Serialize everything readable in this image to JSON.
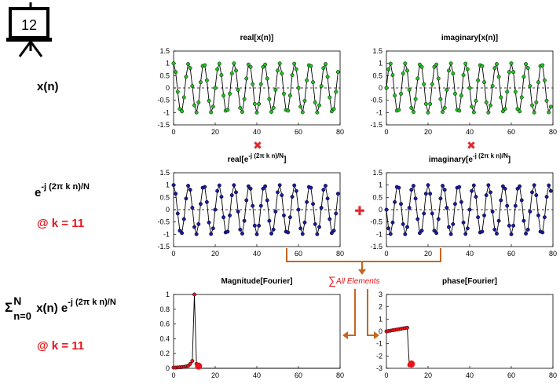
{
  "slide_number": "12",
  "icon_name": "presentation-board-icon",
  "row_labels": {
    "signal": "x(n)",
    "kernel_base": "e",
    "kernel_exp": "-j (2π k n)/N",
    "kernel_k": "@ k = 11",
    "sum_sigma": "Σ",
    "sum_top": "N",
    "sum_bottom": "n=0",
    "sum_body": "x(n) e",
    "sum_exp": "-j (2π k n)/N",
    "sum_k": "@ k = 11"
  },
  "operators": {
    "multiply": "✖",
    "add": "✚",
    "sum_label": "All Elements",
    "sum_symbol": "∑"
  },
  "colors": {
    "green_marker": "#22c222",
    "blue_marker": "#1a1aa0",
    "red_marker": "#e8141a",
    "arrow": "#c8651e",
    "operator_red": "#e0282e"
  },
  "chart_data": [
    {
      "id": "real_x",
      "type": "line",
      "title": "real[x(n)]",
      "marker": "green",
      "xlim": [
        0,
        80
      ],
      "ylim": [
        -1.5,
        1.5
      ],
      "xticks": [
        "0",
        "20",
        "40",
        "60",
        "80"
      ],
      "yticks": [
        "1.5",
        "1",
        "0.5",
        "0",
        "-0.5",
        "-1",
        "-1.5"
      ],
      "x_range": [
        0,
        79
      ],
      "freq": 0.1375,
      "phase": 0,
      "func": "cos",
      "dashed_zero": true
    },
    {
      "id": "imag_x",
      "type": "line",
      "title": "imaginary[x(n)]",
      "marker": "green",
      "xlim": [
        0,
        80
      ],
      "ylim": [
        -1.5,
        1.5
      ],
      "xticks": [
        "0",
        "20",
        "40",
        "60",
        "80"
      ],
      "yticks": [
        "1.5",
        "1",
        "0.5",
        "0",
        "-0.5",
        "-1",
        "-1.5"
      ],
      "x_range": [
        0,
        79
      ],
      "freq": 0.1375,
      "phase": 0,
      "func": "sin",
      "dashed_zero": true
    },
    {
      "id": "real_e",
      "type": "line",
      "title_base": "real[e",
      "title_exp": "-j (2π k n)/N",
      "title_end": "]",
      "marker": "blue",
      "xlim": [
        0,
        80
      ],
      "ylim": [
        -1.5,
        1.5
      ],
      "xticks": [
        "0",
        "20",
        "40",
        "60",
        "80"
      ],
      "yticks": [
        "1.5",
        "1",
        "0.5",
        "0",
        "-0.5",
        "-1",
        "-1.5"
      ],
      "x_range": [
        0,
        79
      ],
      "freq": 0.1375,
      "phase": 0,
      "func": "cos",
      "dashed_zero": true
    },
    {
      "id": "imag_e",
      "type": "line",
      "title_base": "imaginary[e",
      "title_exp": "-j (2π k n)/N",
      "title_end": "]",
      "marker": "blue",
      "xlim": [
        0,
        80
      ],
      "ylim": [
        -1.5,
        1.5
      ],
      "xticks": [
        "0",
        "20",
        "40",
        "60",
        "80"
      ],
      "yticks": [
        "1.5",
        "1",
        "0.5",
        "0",
        "-0.5",
        "-1",
        "-1.5"
      ],
      "x_range": [
        0,
        79
      ],
      "freq": 0.1375,
      "phase": 0,
      "func": "nsin",
      "dashed_zero": true
    },
    {
      "id": "mag",
      "type": "scatter",
      "title": "Magnitude[Fourier]",
      "marker": "red",
      "xlim": [
        0,
        80
      ],
      "ylim": [
        0,
        1
      ],
      "xticks": [
        "0",
        "20",
        "40",
        "60",
        "80"
      ],
      "yticks": [
        "1",
        "0.8",
        "0.6",
        "0.4",
        "0.2",
        "0"
      ],
      "x": [
        0,
        1,
        2,
        3,
        4,
        5,
        6,
        7,
        8,
        9,
        10,
        11
      ],
      "y": [
        0.01,
        0.01,
        0.012,
        0.014,
        0.016,
        0.02,
        0.025,
        0.035,
        0.06,
        0.1,
        1.0,
        0.06
      ],
      "zero_line_from": 11,
      "zero_line_to": 80,
      "highlight": {
        "x": 12,
        "y": 0.03
      }
    },
    {
      "id": "phase",
      "type": "scatter",
      "title": "phase[Fourier]",
      "marker": "red",
      "xlim": [
        0,
        80
      ],
      "ylim": [
        -3,
        3
      ],
      "xticks": [
        "0",
        "20",
        "40",
        "60",
        "80"
      ],
      "yticks": [
        "3",
        "2",
        "1",
        "0",
        "-1",
        "-2",
        "-3"
      ],
      "x": [
        0,
        1,
        2,
        3,
        4,
        5,
        6,
        7,
        8,
        9,
        10,
        11
      ],
      "y": [
        0.0,
        0.03,
        0.06,
        0.09,
        0.12,
        0.15,
        0.18,
        0.21,
        0.24,
        0.27,
        0.3,
        -2.75
      ],
      "highlight": {
        "x": 12,
        "y": -2.65
      }
    }
  ]
}
